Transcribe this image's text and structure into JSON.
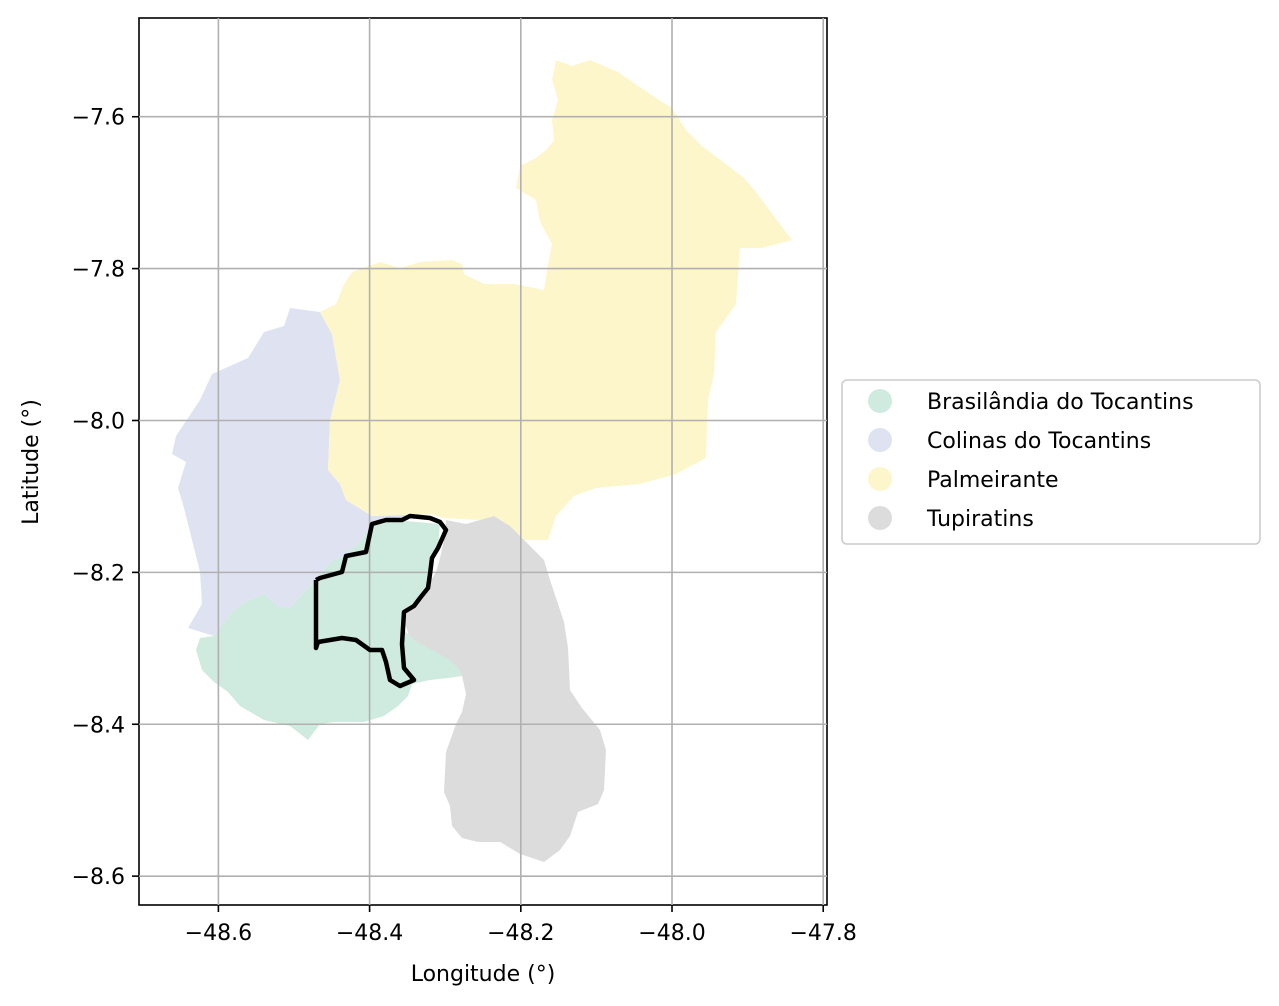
{
  "chart_data": {
    "type": "map",
    "xlabel": "Longitude (°)",
    "ylabel": "Latitude (°)",
    "xlim": [
      -48.705,
      -47.795
    ],
    "ylim": [
      -8.638,
      -7.47
    ],
    "x_ticks": [
      -48.6,
      -48.4,
      -48.2,
      -48.0,
      -47.8
    ],
    "y_ticks": [
      -7.6,
      -7.8,
      -8.0,
      -8.2,
      -8.4,
      -8.6
    ],
    "x_tick_labels": [
      "−48.6",
      "−48.4",
      "−48.2",
      "−48.0",
      "−47.8"
    ],
    "y_tick_labels": [
      "−7.6",
      "−7.8",
      "−8.0",
      "−8.2",
      "−8.4",
      "−8.6"
    ],
    "grid": true,
    "legend_position": "right",
    "regions": [
      {
        "name": "Brasilândia do Tocantins",
        "color": "#cfeade"
      },
      {
        "name": "Colinas do Tocantins",
        "color": "#dfe3f1"
      },
      {
        "name": "Palmeirante",
        "color": "#fef6cb"
      },
      {
        "name": "Tupiratins",
        "color": "#dcdcdc"
      }
    ],
    "highlight_outline_color": "#000000"
  }
}
